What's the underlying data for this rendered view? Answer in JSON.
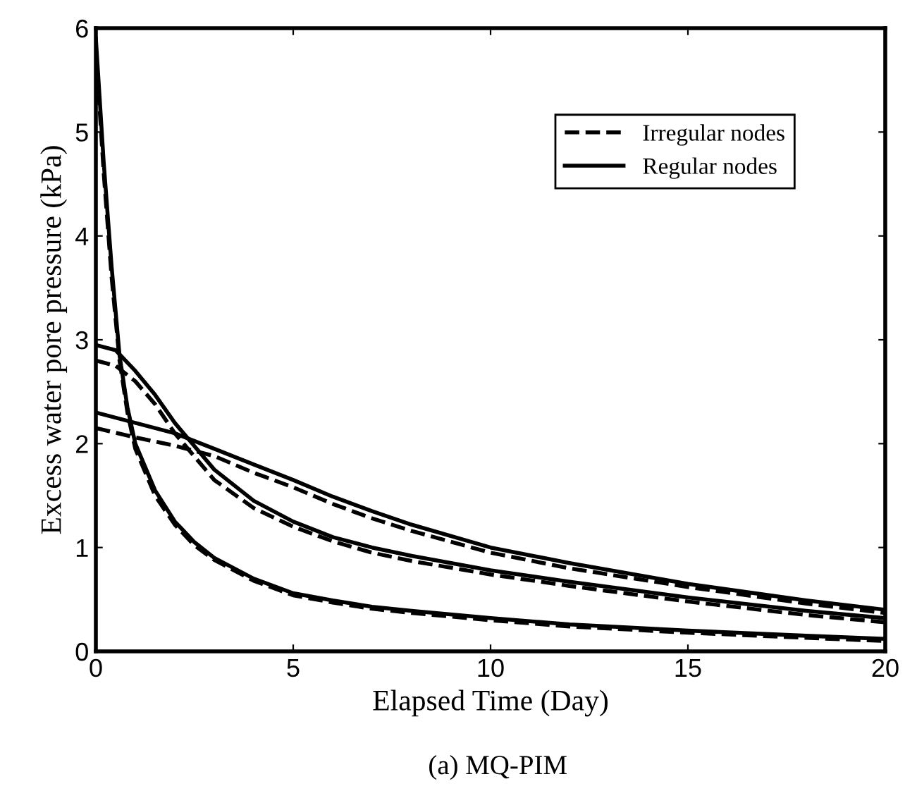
{
  "chart_data": {
    "type": "line",
    "xlabel": "Elapsed Time (Day)",
    "ylabel": "Excess water pore pressure (kPa)",
    "annotations": [
      "(a) MQ-PIM"
    ],
    "xlim": [
      0,
      20
    ],
    "ylim": [
      0,
      6
    ],
    "xticks": [
      0,
      5,
      10,
      15,
      20
    ],
    "yticks": [
      0,
      1,
      2,
      3,
      4,
      5,
      6
    ],
    "grid": false,
    "legend": "top right",
    "marker": "none",
    "series": [
      {
        "name": "Irregular nodes",
        "color": "#000000",
        "line_style": "dashed",
        "x": [
          0,
          0.2,
          0.4,
          0.6,
          0.8,
          1,
          1.5,
          2,
          2.5,
          3,
          4,
          5,
          6,
          7,
          8,
          10,
          12,
          15,
          18,
          20
        ],
        "values": [
          5.8,
          4.6,
          3.6,
          2.8,
          2.3,
          1.95,
          1.5,
          1.22,
          1.02,
          0.88,
          0.68,
          0.54,
          0.47,
          0.41,
          0.37,
          0.3,
          0.24,
          0.18,
          0.13,
          0.1
        ]
      },
      {
        "name": "Regular nodes",
        "color": "#000000",
        "line_style": "solid",
        "x": [
          0,
          0.2,
          0.4,
          0.6,
          0.8,
          1,
          1.5,
          2,
          2.5,
          3,
          4,
          5,
          6,
          7,
          8,
          10,
          12,
          15,
          18,
          20
        ],
        "values": [
          5.9,
          4.7,
          3.7,
          2.85,
          2.35,
          2.0,
          1.55,
          1.25,
          1.05,
          0.9,
          0.7,
          0.56,
          0.49,
          0.43,
          0.39,
          0.32,
          0.26,
          0.2,
          0.15,
          0.12
        ]
      },
      {
        "color": "#000000",
        "line_style": "dashed",
        "x": [
          0,
          0.5,
          1,
          1.5,
          2,
          3,
          4,
          5,
          6,
          7,
          8,
          10,
          12,
          15,
          18,
          20
        ],
        "values": [
          2.8,
          2.75,
          2.6,
          2.38,
          2.1,
          1.65,
          1.38,
          1.2,
          1.06,
          0.95,
          0.87,
          0.74,
          0.63,
          0.48,
          0.35,
          0.28
        ]
      },
      {
        "color": "#000000",
        "line_style": "solid",
        "x": [
          0,
          0.5,
          1,
          1.5,
          2,
          3,
          4,
          5,
          6,
          7,
          8,
          10,
          12,
          15,
          18,
          20
        ],
        "values": [
          2.95,
          2.9,
          2.7,
          2.47,
          2.2,
          1.75,
          1.45,
          1.25,
          1.1,
          1.0,
          0.92,
          0.78,
          0.67,
          0.52,
          0.39,
          0.32
        ]
      },
      {
        "color": "#000000",
        "line_style": "dashed",
        "x": [
          0,
          1,
          2,
          3,
          4,
          5,
          6,
          7,
          8,
          10,
          12,
          15,
          18,
          20
        ],
        "values": [
          2.15,
          2.06,
          1.98,
          1.88,
          1.72,
          1.58,
          1.42,
          1.28,
          1.16,
          0.95,
          0.8,
          0.62,
          0.46,
          0.37
        ]
      },
      {
        "color": "#000000",
        "line_style": "solid",
        "x": [
          0,
          1,
          2,
          3,
          4,
          5,
          6,
          7,
          8,
          10,
          12,
          15,
          18,
          20
        ],
        "values": [
          2.3,
          2.2,
          2.1,
          1.95,
          1.8,
          1.65,
          1.49,
          1.35,
          1.22,
          1.0,
          0.85,
          0.65,
          0.49,
          0.4
        ]
      }
    ]
  }
}
